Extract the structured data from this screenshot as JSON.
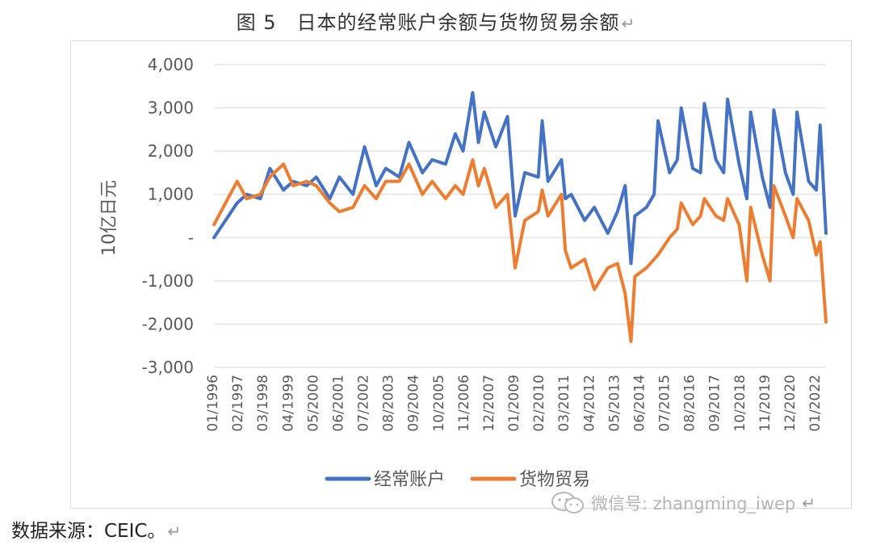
{
  "caption": "图 5　日本的经常账户余额与货物贸易余额",
  "source_text": "数据来源：CEIC。",
  "watermark_text": "微信号: zhangming_iwep",
  "colors": {
    "current_account": "#4472C4",
    "trade": "#ED7D31",
    "grid": "#d9d9d9",
    "axis_text": "#595959"
  },
  "icons": {
    "watermark": "wechat-icon",
    "paragraph_mark": "↵"
  },
  "chart_data": {
    "type": "line",
    "ylabel": "10亿日元",
    "ylim": [
      -3000,
      4000
    ],
    "yticks": [
      4000,
      3000,
      2000,
      1000,
      0,
      -1000,
      -2000,
      -3000
    ],
    "ytick_labels": [
      "4,000",
      "3,000",
      "2,000",
      "1,000",
      "-",
      "-1,000",
      "-2,000",
      "-3,000"
    ],
    "xtick_labels": [
      "01/1996",
      "02/1997",
      "03/1998",
      "04/1999",
      "05/2000",
      "06/2001",
      "07/2002",
      "08/2003",
      "09/2004",
      "10/2005",
      "11/2006",
      "12/2007",
      "01/2009",
      "02/2010",
      "03/2011",
      "04/2012",
      "05/2013",
      "06/2014",
      "07/2015",
      "08/2016",
      "09/2017",
      "10/2018",
      "11/2019",
      "12/2020",
      "01/2022"
    ],
    "x_start": "01/1996",
    "x_end": "06/2022",
    "grid": "horizontal",
    "legend_position": "bottom",
    "series": [
      {
        "name": "经常账户",
        "color": "#4472C4",
        "x": [
          "01/1996",
          "01/1997",
          "06/1997",
          "01/1998",
          "06/1998",
          "01/1999",
          "06/1999",
          "01/2000",
          "06/2000",
          "01/2001",
          "06/2001",
          "01/2002",
          "07/2002",
          "01/2003",
          "06/2003",
          "01/2004",
          "06/2004",
          "01/2005",
          "06/2005",
          "01/2006",
          "06/2006",
          "10/2006",
          "03/2007",
          "06/2007",
          "09/2007",
          "03/2008",
          "09/2008",
          "01/2009",
          "06/2009",
          "01/2010",
          "03/2010",
          "06/2010",
          "01/2011",
          "03/2011",
          "06/2011",
          "01/2012",
          "06/2012",
          "01/2013",
          "06/2013",
          "10/2013",
          "01/2014",
          "03/2014",
          "09/2014",
          "01/2015",
          "03/2015",
          "09/2015",
          "01/2016",
          "03/2016",
          "09/2016",
          "01/2017",
          "03/2017",
          "09/2017",
          "01/2018",
          "03/2018",
          "09/2018",
          "01/2019",
          "03/2019",
          "09/2019",
          "01/2020",
          "03/2020",
          "09/2020",
          "01/2021",
          "03/2021",
          "09/2021",
          "01/2022",
          "03/2022",
          "06/2022"
        ],
        "values": [
          0,
          800,
          1000,
          900,
          1600,
          1100,
          1300,
          1200,
          1400,
          900,
          1400,
          1000,
          2100,
          1200,
          1600,
          1400,
          2200,
          1500,
          1800,
          1700,
          2400,
          2000,
          3350,
          2200,
          2900,
          2100,
          2800,
          500,
          1500,
          1400,
          2700,
          1300,
          1800,
          900,
          1000,
          400,
          700,
          100,
          600,
          1200,
          -600,
          500,
          700,
          1000,
          2700,
          1500,
          1800,
          3000,
          1600,
          1500,
          3100,
          1800,
          1500,
          3200,
          1700,
          900,
          2900,
          1400,
          700,
          2950,
          1500,
          1000,
          2900,
          1300,
          1100,
          2600,
          100
        ]
      },
      {
        "name": "货物贸易",
        "color": "#ED7D31",
        "x": [
          "01/1996",
          "01/1997",
          "06/1997",
          "01/1998",
          "06/1998",
          "01/1999",
          "06/1999",
          "01/2000",
          "06/2000",
          "01/2001",
          "06/2001",
          "01/2002",
          "07/2002",
          "01/2003",
          "06/2003",
          "01/2004",
          "06/2004",
          "01/2005",
          "06/2005",
          "01/2006",
          "06/2006",
          "10/2006",
          "03/2007",
          "06/2007",
          "09/2007",
          "03/2008",
          "09/2008",
          "01/2009",
          "06/2009",
          "01/2010",
          "03/2010",
          "06/2010",
          "01/2011",
          "03/2011",
          "06/2011",
          "01/2012",
          "06/2012",
          "01/2013",
          "06/2013",
          "10/2013",
          "01/2014",
          "03/2014",
          "09/2014",
          "01/2015",
          "03/2015",
          "09/2015",
          "01/2016",
          "03/2016",
          "09/2016",
          "01/2017",
          "03/2017",
          "09/2017",
          "01/2018",
          "03/2018",
          "09/2018",
          "01/2019",
          "03/2019",
          "09/2019",
          "01/2020",
          "03/2020",
          "09/2020",
          "01/2021",
          "03/2021",
          "09/2021",
          "01/2022",
          "03/2022",
          "06/2022"
        ],
        "values": [
          300,
          1300,
          900,
          1000,
          1400,
          1700,
          1200,
          1300,
          1200,
          800,
          600,
          700,
          1200,
          900,
          1300,
          1300,
          1700,
          1000,
          1300,
          900,
          1200,
          1000,
          1800,
          1200,
          1600,
          700,
          1000,
          -700,
          400,
          600,
          1100,
          500,
          1000,
          -300,
          -700,
          -500,
          -1200,
          -700,
          -600,
          -1300,
          -2400,
          -900,
          -700,
          -500,
          -400,
          0,
          200,
          800,
          300,
          500,
          900,
          500,
          400,
          900,
          300,
          -1000,
          700,
          -400,
          -1000,
          1200,
          500,
          0,
          900,
          400,
          -400,
          -100,
          -1950
        ]
      }
    ]
  }
}
